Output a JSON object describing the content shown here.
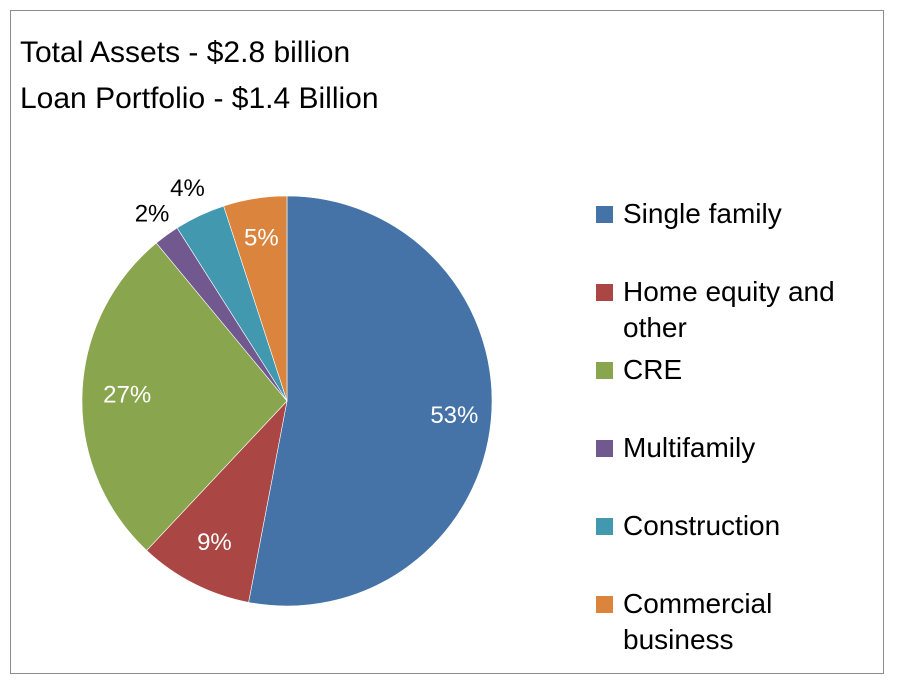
{
  "title_lines": [
    "Total Assets - $2.8 billion",
    "Loan Portfolio - $1.4 Billion"
  ],
  "chart_data": {
    "type": "pie",
    "title": "Total Assets - $2.8 billion\nLoan Portfolio - $1.4 Billion",
    "categories": [
      "Single family",
      "Home equity and other",
      "CRE",
      "Multifamily",
      "Construction",
      "Commercial business"
    ],
    "values": [
      53,
      9,
      27,
      2,
      4,
      5
    ],
    "data_labels": [
      "53%",
      "9%",
      "27%",
      "2%",
      "4%",
      "5%"
    ],
    "colors": [
      "#4572A7",
      "#AA4643",
      "#89A54E",
      "#71588F",
      "#4198AF",
      "#DB843D"
    ],
    "legend_position": "right",
    "start_angle_deg": 0,
    "direction": "clockwise"
  }
}
